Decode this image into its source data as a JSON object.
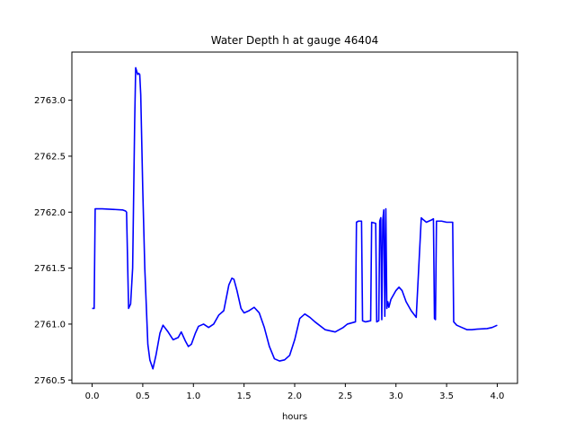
{
  "chart_data": {
    "type": "line",
    "title": "Water Depth h at gauge 46404",
    "xlabel": "hours",
    "ylabel": "",
    "xlim": [
      -0.2,
      4.2
    ],
    "ylim": [
      2760.47,
      2763.43
    ],
    "xticks": [
      0.0,
      0.5,
      1.0,
      1.5,
      2.0,
      2.5,
      3.0,
      3.5,
      4.0
    ],
    "xtick_labels": [
      "0.0",
      "0.5",
      "1.0",
      "1.5",
      "2.0",
      "2.5",
      "3.0",
      "3.5",
      "4.0"
    ],
    "yticks": [
      2760.5,
      2761.0,
      2761.5,
      2762.0,
      2762.5,
      2763.0
    ],
    "ytick_labels": [
      "2760.5",
      "2761.0",
      "2761.5",
      "2762.0",
      "2762.5",
      "2763.0"
    ],
    "grid": false,
    "series": [
      {
        "color": "#0000ff",
        "x": [
          0.0,
          0.02,
          0.03,
          0.1,
          0.2,
          0.3,
          0.33,
          0.34,
          0.36,
          0.38,
          0.4,
          0.42,
          0.43,
          0.44,
          0.45,
          0.46,
          0.47,
          0.48,
          0.5,
          0.52,
          0.55,
          0.57,
          0.6,
          0.63,
          0.67,
          0.7,
          0.75,
          0.8,
          0.85,
          0.88,
          0.92,
          0.95,
          0.98,
          1.02,
          1.05,
          1.1,
          1.15,
          1.2,
          1.25,
          1.3,
          1.35,
          1.38,
          1.4,
          1.43,
          1.47,
          1.5,
          1.55,
          1.6,
          1.65,
          1.7,
          1.75,
          1.8,
          1.85,
          1.9,
          1.95,
          2.0,
          2.05,
          2.1,
          2.15,
          2.2,
          2.3,
          2.4,
          2.48,
          2.52,
          2.6,
          2.61,
          2.63,
          2.66,
          2.67,
          2.7,
          2.75,
          2.76,
          2.8,
          2.81,
          2.83,
          2.84,
          2.85,
          2.86,
          2.87,
          2.88,
          2.89,
          2.9,
          2.91,
          2.92,
          2.93,
          2.95,
          3.0,
          3.03,
          3.06,
          3.1,
          3.15,
          3.2,
          3.25,
          3.26,
          3.3,
          3.35,
          3.37,
          3.38,
          3.39,
          3.4,
          3.45,
          3.5,
          3.56,
          3.57,
          3.59,
          3.6,
          3.65,
          3.7,
          3.75,
          3.8,
          3.9,
          3.95,
          4.0
        ],
        "y": [
          2761.14,
          2761.14,
          2762.03,
          2762.03,
          2762.025,
          2762.02,
          2762.01,
          2762.0,
          2761.14,
          2761.18,
          2761.5,
          2762.8,
          2763.29,
          2763.26,
          2763.23,
          2763.24,
          2763.23,
          2763.05,
          2762.2,
          2761.5,
          2760.82,
          2760.68,
          2760.6,
          2760.72,
          2760.92,
          2760.99,
          2760.93,
          2760.86,
          2760.88,
          2760.93,
          2760.85,
          2760.8,
          2760.82,
          2760.92,
          2760.98,
          2761.0,
          2760.97,
          2761.0,
          2761.08,
          2761.12,
          2761.35,
          2761.41,
          2761.4,
          2761.3,
          2761.14,
          2761.1,
          2761.12,
          2761.15,
          2761.1,
          2760.97,
          2760.8,
          2760.69,
          2760.67,
          2760.68,
          2760.72,
          2760.86,
          2761.05,
          2761.09,
          2761.06,
          2761.02,
          2760.95,
          2760.93,
          2760.97,
          2761.0,
          2761.02,
          2761.91,
          2761.92,
          2761.92,
          2761.03,
          2761.02,
          2761.03,
          2761.91,
          2761.9,
          2761.02,
          2761.03,
          2761.92,
          2761.95,
          2761.04,
          2761.93,
          2762.02,
          2761.07,
          2762.03,
          2761.14,
          2761.2,
          2761.15,
          2761.22,
          2761.3,
          2761.33,
          2761.3,
          2761.2,
          2761.12,
          2761.06,
          2761.95,
          2761.94,
          2761.91,
          2761.93,
          2761.94,
          2761.05,
          2761.04,
          2761.92,
          2761.92,
          2761.91,
          2761.91,
          2761.02,
          2761.0,
          2760.99,
          2760.97,
          2760.95,
          2760.95,
          2760.955,
          2760.96,
          2760.97,
          2760.99
        ]
      }
    ]
  }
}
